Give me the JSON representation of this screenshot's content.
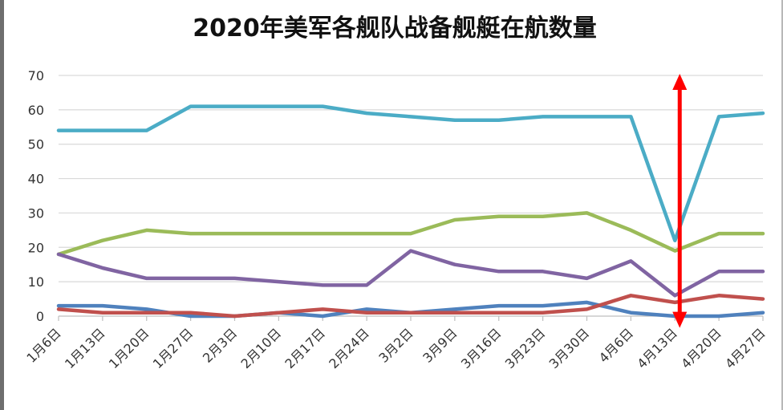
{
  "chart_data": {
    "type": "line",
    "title": "2020年美军各舰队战备舰艇在航数量",
    "xlabel": "",
    "ylabel": "",
    "ylim": [
      0,
      70
    ],
    "yticks": [
      0,
      10,
      20,
      30,
      40,
      50,
      60,
      70
    ],
    "grid": true,
    "categories": [
      "1月6日",
      "1月13日",
      "1月20日",
      "1月27日",
      "2月3日",
      "2月10日",
      "2月17日",
      "2月24日",
      "3月2日",
      "3月9日",
      "3月16日",
      "3月23日",
      "3月30日",
      "4月6日",
      "4月13日",
      "4月20日",
      "4月27日"
    ],
    "series": [
      {
        "name": "series-teal",
        "color": "#4bacc6",
        "values": [
          54,
          54,
          54,
          61,
          61,
          61,
          61,
          59,
          58,
          57,
          57,
          58,
          58,
          58,
          22,
          58,
          59
        ]
      },
      {
        "name": "series-green",
        "color": "#9bbb59",
        "values": [
          18,
          22,
          25,
          24,
          24,
          24,
          24,
          24,
          24,
          28,
          29,
          29,
          30,
          25,
          19,
          24,
          24
        ]
      },
      {
        "name": "series-purple",
        "color": "#8064a2",
        "values": [
          18,
          14,
          11,
          11,
          11,
          10,
          9,
          9,
          19,
          15,
          13,
          13,
          11,
          16,
          6,
          13,
          13
        ]
      },
      {
        "name": "series-blue",
        "color": "#4f81bd",
        "values": [
          3,
          3,
          2,
          0,
          0,
          1,
          0,
          2,
          1,
          2,
          3,
          3,
          4,
          1,
          0,
          0,
          1
        ]
      },
      {
        "name": "series-red",
        "color": "#c0504d",
        "values": [
          2,
          1,
          1,
          1,
          0,
          1,
          2,
          1,
          1,
          1,
          1,
          1,
          2,
          6,
          4,
          6,
          5
        ]
      }
    ],
    "annotation": {
      "type": "double-arrow",
      "color": "#ff0000",
      "at_category": "4月13日",
      "from_value": 70,
      "to_value": -2
    }
  }
}
